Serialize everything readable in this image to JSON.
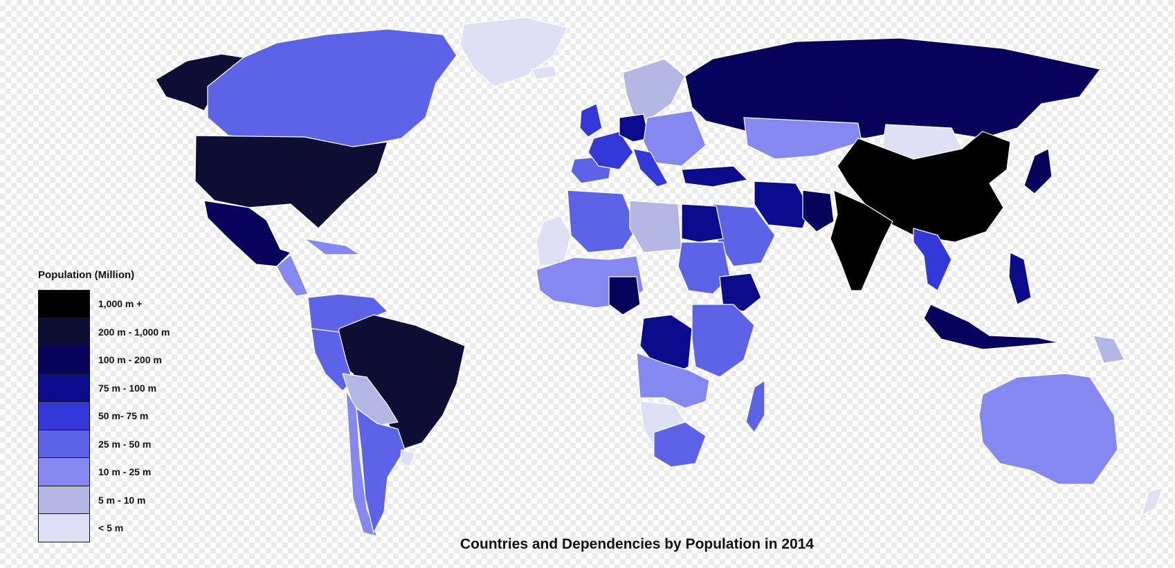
{
  "title": "Countries and Dependencies by Population in 2014",
  "legend": {
    "title": "Population (Million)",
    "items": [
      {
        "label": "1,000 m +",
        "color": "#000000"
      },
      {
        "label": "200 m - 1,000 m",
        "color": "#0d0d35"
      },
      {
        "label": "100 m - 200 m",
        "color": "#05045a"
      },
      {
        "label": "75 m - 100 m",
        "color": "#0a0c8c"
      },
      {
        "label": "50 m- 75 m",
        "color": "#3438d6"
      },
      {
        "label": "25 m - 50 m",
        "color": "#5d63e6"
      },
      {
        "label": "10 m - 25 m",
        "color": "#8488ef"
      },
      {
        "label": "5 m - 10 m",
        "color": "#b4b6e4"
      },
      {
        "label": "< 5 m",
        "color": "#dfe0f4"
      }
    ]
  },
  "regions": [
    {
      "name": "Alaska",
      "class": 1
    },
    {
      "name": "Canada",
      "class": 5
    },
    {
      "name": "Greenland",
      "class": 8
    },
    {
      "name": "United States",
      "class": 1
    },
    {
      "name": "Mexico",
      "class": 2
    },
    {
      "name": "Central America",
      "class": 6
    },
    {
      "name": "Caribbean",
      "class": 6
    },
    {
      "name": "Venezuela-Colombia",
      "class": 5
    },
    {
      "name": "Brazil",
      "class": 1
    },
    {
      "name": "Peru",
      "class": 5
    },
    {
      "name": "Bolivia-Paraguay",
      "class": 7
    },
    {
      "name": "Chile",
      "class": 6
    },
    {
      "name": "Argentina",
      "class": 5
    },
    {
      "name": "Uruguay",
      "class": 8
    },
    {
      "name": "Iceland",
      "class": 8
    },
    {
      "name": "Scandinavia",
      "class": 7
    },
    {
      "name": "United Kingdom",
      "class": 4
    },
    {
      "name": "Iberia",
      "class": 5
    },
    {
      "name": "France",
      "class": 4
    },
    {
      "name": "Germany",
      "class": 3
    },
    {
      "name": "Central Europe",
      "class": 6
    },
    {
      "name": "Italy",
      "class": 4
    },
    {
      "name": "Russia",
      "class": 2
    },
    {
      "name": "Turkey",
      "class": 3
    },
    {
      "name": "Kazakhstan",
      "class": 6
    },
    {
      "name": "Mongolia",
      "class": 8
    },
    {
      "name": "China",
      "class": 0
    },
    {
      "name": "India",
      "class": 0
    },
    {
      "name": "Iran",
      "class": 3
    },
    {
      "name": "Pakistan",
      "class": 2
    },
    {
      "name": "Saudi Arabia",
      "class": 5
    },
    {
      "name": "Japan",
      "class": 2
    },
    {
      "name": "Myanmar-Thailand",
      "class": 4
    },
    {
      "name": "Indonesia",
      "class": 2
    },
    {
      "name": "Philippines",
      "class": 3
    },
    {
      "name": "Papua New Guinea",
      "class": 7
    },
    {
      "name": "Australia",
      "class": 6
    },
    {
      "name": "New Zealand",
      "class": 8
    },
    {
      "name": "Western Sahara",
      "class": 8
    },
    {
      "name": "Algeria",
      "class": 5
    },
    {
      "name": "Libya",
      "class": 7
    },
    {
      "name": "Egypt",
      "class": 3
    },
    {
      "name": "Sudan",
      "class": 5
    },
    {
      "name": "West Africa",
      "class": 6
    },
    {
      "name": "Nigeria",
      "class": 2
    },
    {
      "name": "Ethiopia",
      "class": 3
    },
    {
      "name": "DR Congo",
      "class": 3
    },
    {
      "name": "East Africa",
      "class": 5
    },
    {
      "name": "Angola-Zambia",
      "class": 6
    },
    {
      "name": "Namibia-Botswana",
      "class": 8
    },
    {
      "name": "South Africa",
      "class": 5
    },
    {
      "name": "Madagascar",
      "class": 5
    }
  ]
}
